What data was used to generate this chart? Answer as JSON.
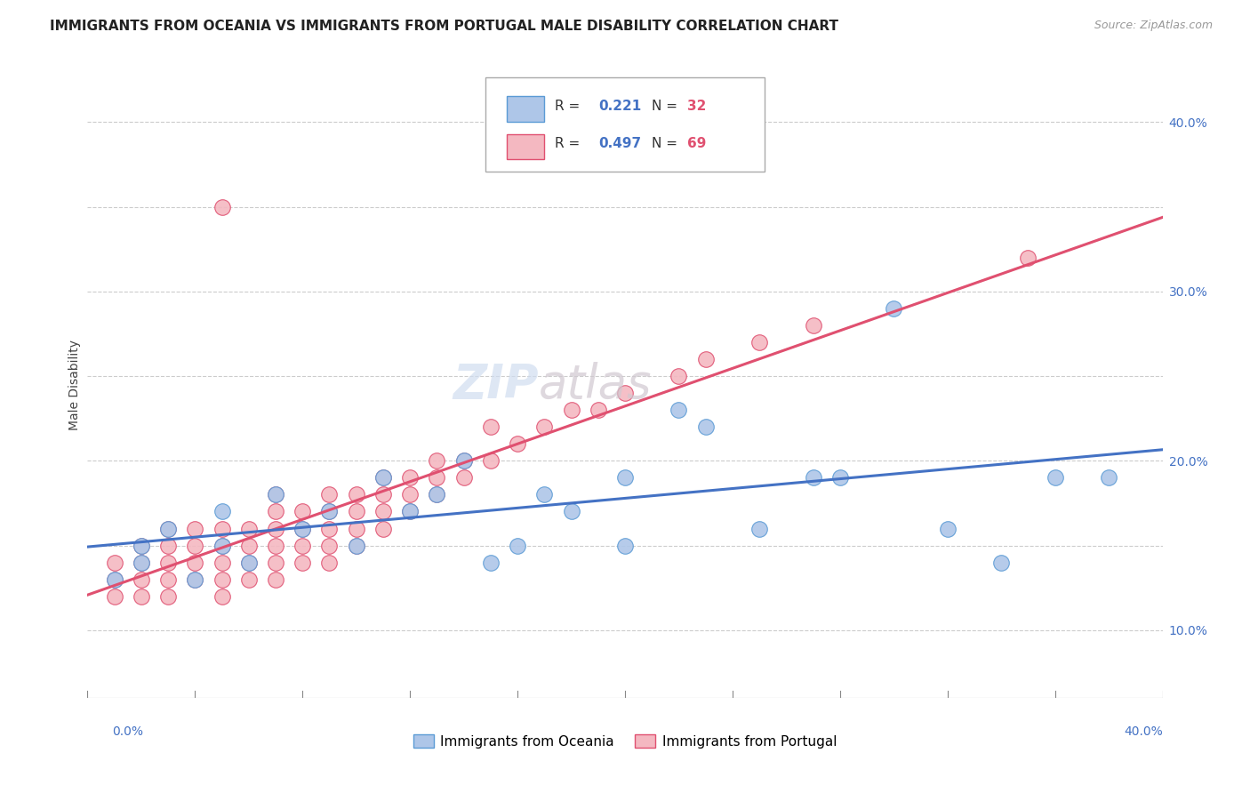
{
  "title": "IMMIGRANTS FROM OCEANIA VS IMMIGRANTS FROM PORTUGAL MALE DISABILITY CORRELATION CHART",
  "source": "Source: ZipAtlas.com",
  "ylabel": "Male Disability",
  "xlim": [
    0.0,
    0.4
  ],
  "ylim": [
    0.06,
    0.43
  ],
  "ytick_vals": [
    0.1,
    0.2,
    0.3,
    0.4
  ],
  "ytick_labels": [
    "10.0%",
    "20.0%",
    "30.0%",
    "40.0%"
  ],
  "grid_dashed_vals": [
    0.1,
    0.15,
    0.2,
    0.25,
    0.3,
    0.35,
    0.4
  ],
  "grid_color": "#cccccc",
  "background_color": "#ffffff",
  "watermark_zip": "ZIP",
  "watermark_atlas": "atlas",
  "oceania": {
    "name": "Immigrants from Oceania",
    "face_color": "#aec6e8",
    "edge_color": "#5b9bd5",
    "line_color": "#4472c4",
    "R": 0.221,
    "N": 32,
    "px": [
      0.01,
      0.02,
      0.02,
      0.03,
      0.04,
      0.05,
      0.05,
      0.06,
      0.07,
      0.08,
      0.09,
      0.1,
      0.11,
      0.12,
      0.13,
      0.14,
      0.16,
      0.17,
      0.18,
      0.2,
      0.22,
      0.23,
      0.25,
      0.27,
      0.3,
      0.32,
      0.34,
      0.36,
      0.2,
      0.15,
      0.28,
      0.38
    ],
    "py": [
      0.13,
      0.14,
      0.15,
      0.16,
      0.13,
      0.17,
      0.15,
      0.14,
      0.18,
      0.16,
      0.17,
      0.15,
      0.19,
      0.17,
      0.18,
      0.2,
      0.15,
      0.18,
      0.17,
      0.19,
      0.23,
      0.22,
      0.16,
      0.19,
      0.29,
      0.16,
      0.14,
      0.19,
      0.15,
      0.14,
      0.19,
      0.19
    ]
  },
  "portugal": {
    "name": "Immigrants from Portugal",
    "face_color": "#f4b8c1",
    "edge_color": "#e05070",
    "line_color": "#e05070",
    "R": 0.497,
    "N": 69,
    "px": [
      0.01,
      0.01,
      0.01,
      0.02,
      0.02,
      0.02,
      0.02,
      0.03,
      0.03,
      0.03,
      0.03,
      0.03,
      0.04,
      0.04,
      0.04,
      0.04,
      0.05,
      0.05,
      0.05,
      0.05,
      0.05,
      0.06,
      0.06,
      0.06,
      0.06,
      0.07,
      0.07,
      0.07,
      0.07,
      0.07,
      0.07,
      0.08,
      0.08,
      0.08,
      0.08,
      0.09,
      0.09,
      0.09,
      0.09,
      0.09,
      0.1,
      0.1,
      0.1,
      0.1,
      0.11,
      0.11,
      0.11,
      0.11,
      0.12,
      0.12,
      0.12,
      0.13,
      0.13,
      0.13,
      0.14,
      0.14,
      0.15,
      0.15,
      0.16,
      0.17,
      0.18,
      0.19,
      0.2,
      0.22,
      0.23,
      0.25,
      0.27,
      0.05,
      0.35
    ],
    "py": [
      0.12,
      0.13,
      0.14,
      0.12,
      0.13,
      0.14,
      0.15,
      0.12,
      0.13,
      0.14,
      0.15,
      0.16,
      0.13,
      0.14,
      0.15,
      0.16,
      0.12,
      0.13,
      0.14,
      0.15,
      0.16,
      0.13,
      0.14,
      0.15,
      0.16,
      0.13,
      0.14,
      0.15,
      0.16,
      0.17,
      0.18,
      0.14,
      0.15,
      0.16,
      0.17,
      0.14,
      0.15,
      0.16,
      0.17,
      0.18,
      0.15,
      0.16,
      0.17,
      0.18,
      0.16,
      0.17,
      0.18,
      0.19,
      0.17,
      0.18,
      0.19,
      0.18,
      0.19,
      0.2,
      0.19,
      0.2,
      0.2,
      0.22,
      0.21,
      0.22,
      0.23,
      0.23,
      0.24,
      0.25,
      0.26,
      0.27,
      0.28,
      0.35,
      0.32
    ]
  },
  "title_fontsize": 11,
  "label_fontsize": 10,
  "tick_fontsize": 10
}
